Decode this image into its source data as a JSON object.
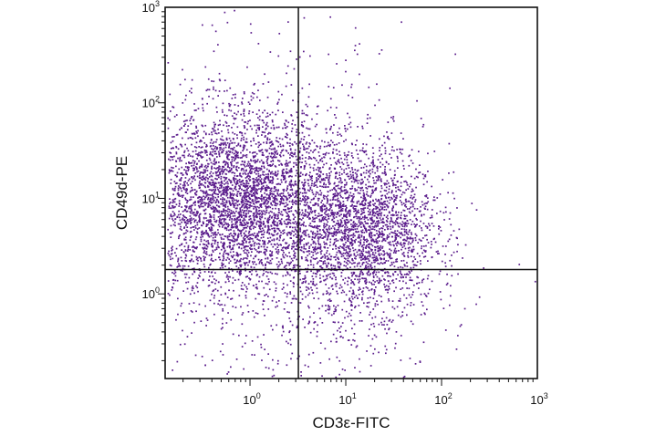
{
  "chart_data": {
    "type": "scatter",
    "title": "",
    "xlabel": "CD3ε-FITC",
    "ylabel": "CD49d-PE",
    "x_scale": "log",
    "y_scale": "log",
    "xlim": [
      0.13,
      1000
    ],
    "ylim": [
      0.13,
      1000
    ],
    "x_ticks": [
      {
        "value": 1,
        "base": "10",
        "exp": "0"
      },
      {
        "value": 10,
        "base": "10",
        "exp": "1"
      },
      {
        "value": 100,
        "base": "10",
        "exp": "2"
      },
      {
        "value": 1000,
        "base": "10",
        "exp": "3"
      }
    ],
    "y_ticks": [
      {
        "value": 1,
        "base": "10",
        "exp": "0"
      },
      {
        "value": 10,
        "base": "10",
        "exp": "1"
      },
      {
        "value": 100,
        "base": "10",
        "exp": "2"
      },
      {
        "value": 1000,
        "base": "10",
        "exp": "3"
      }
    ],
    "quadrant_gates": {
      "x": 3.2,
      "y": 1.8
    },
    "grid": false,
    "point_color": "#5b1d8c",
    "populations": [
      {
        "name": "",
        "center": [
          0.75,
          9.5
        ],
        "spread": [
          0.5,
          0.45
        ],
        "count": 3600
      },
      {
        "name": "",
        "center": [
          15,
          5.0
        ],
        "spread": [
          0.38,
          0.42
        ],
        "count": 2200
      },
      {
        "name": "",
        "center": [
          0.8,
          9
        ],
        "spread": [
          0.9,
          0.9
        ],
        "count": 800
      },
      {
        "name": "",
        "center": [
          10,
          1.2
        ],
        "spread": [
          0.55,
          0.7
        ],
        "count": 350
      },
      {
        "name": "",
        "center": [
          1,
          1
        ],
        "spread": [
          0.8,
          0.7
        ],
        "count": 140
      }
    ]
  }
}
